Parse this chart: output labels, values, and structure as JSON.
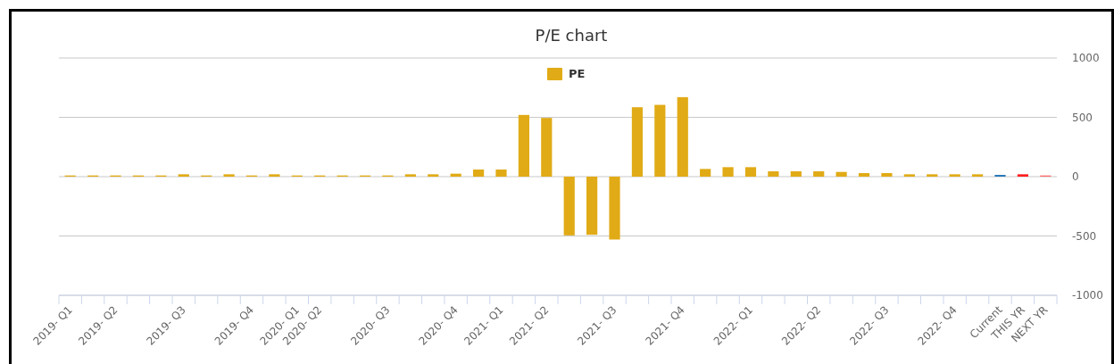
{
  "chart_data": {
    "type": "bar",
    "title": "P/E chart",
    "categories": [
      "2019- Q1",
      null,
      "2019- Q2",
      null,
      null,
      "2019- Q3",
      null,
      null,
      "2019- Q4",
      null,
      "2020- Q1",
      "2020- Q2",
      null,
      null,
      "2020- Q3",
      null,
      null,
      "2020- Q4",
      null,
      "2021- Q1",
      null,
      "2021- Q2",
      null,
      null,
      "2021- Q3",
      null,
      null,
      "2021- Q4",
      null,
      null,
      "2022- Q1",
      null,
      null,
      "2022- Q2",
      null,
      null,
      "2022- Q3",
      null,
      null,
      "2022- Q4",
      null,
      "Current",
      "THIS YR",
      "NEXT YR"
    ],
    "series": [
      {
        "name": "PE",
        "color": "#e1ab17",
        "values": [
          10,
          10,
          10,
          10,
          10,
          20,
          10,
          20,
          10,
          20,
          10,
          10,
          10,
          10,
          10,
          20,
          20,
          25,
          60,
          60,
          520,
          495,
          -495,
          -490,
          -530,
          585,
          605,
          670,
          65,
          80,
          80,
          45,
          45,
          45,
          40,
          30,
          30,
          20,
          20,
          20,
          20,
          15,
          20,
          10
        ],
        "colors": [
          "#e1ab17",
          "#e1ab17",
          "#e1ab17",
          "#e1ab17",
          "#e1ab17",
          "#e1ab17",
          "#e1ab17",
          "#e1ab17",
          "#e1ab17",
          "#e1ab17",
          "#e1ab17",
          "#e1ab17",
          "#e1ab17",
          "#e1ab17",
          "#e1ab17",
          "#e1ab17",
          "#e1ab17",
          "#e1ab17",
          "#e1ab17",
          "#e1ab17",
          "#e1ab17",
          "#e1ab17",
          "#e1ab17",
          "#e1ab17",
          "#e1ab17",
          "#e1ab17",
          "#e1ab17",
          "#e1ab17",
          "#e1ab17",
          "#e1ab17",
          "#e1ab17",
          "#e1ab17",
          "#e1ab17",
          "#e1ab17",
          "#e1ab17",
          "#e1ab17",
          "#e1ab17",
          "#e1ab17",
          "#e1ab17",
          "#e1ab17",
          "#e1ab17",
          "#2a7ab8",
          "#ff1f1f",
          "#ff6b6b"
        ]
      }
    ],
    "ylim": [
      -1000,
      1000
    ],
    "yticks": [
      -1000,
      -500,
      0,
      500,
      1000
    ],
    "grid": "y",
    "legend": "top"
  }
}
